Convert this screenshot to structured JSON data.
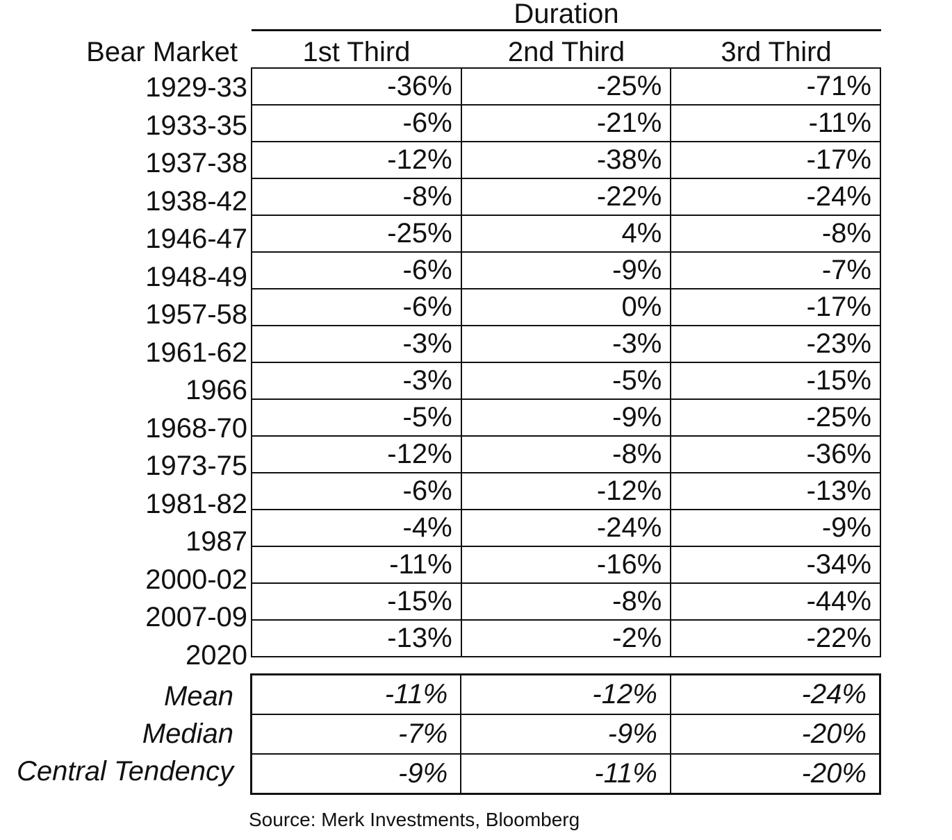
{
  "header": {
    "duration": "Duration",
    "bear_market": "Bear Market",
    "columns": [
      "1st Third",
      "2nd Third",
      "3rd Third"
    ]
  },
  "rows": [
    {
      "label": "1929-33",
      "values": [
        "-36%",
        "-25%",
        "-71%"
      ]
    },
    {
      "label": "1933-35",
      "values": [
        "-6%",
        "-21%",
        "-11%"
      ]
    },
    {
      "label": "1937-38",
      "values": [
        "-12%",
        "-38%",
        "-17%"
      ]
    },
    {
      "label": "1938-42",
      "values": [
        "-8%",
        "-22%",
        "-24%"
      ]
    },
    {
      "label": "1946-47",
      "values": [
        "-25%",
        "4%",
        "-8%"
      ]
    },
    {
      "label": "1948-49",
      "values": [
        "-6%",
        "-9%",
        "-7%"
      ]
    },
    {
      "label": "1957-58",
      "values": [
        "-6%",
        "0%",
        "-17%"
      ]
    },
    {
      "label": "1961-62",
      "values": [
        "-3%",
        "-3%",
        "-23%"
      ]
    },
    {
      "label": "1966",
      "values": [
        "-3%",
        "-5%",
        "-15%"
      ]
    },
    {
      "label": "1968-70",
      "values": [
        "-5%",
        "-9%",
        "-25%"
      ]
    },
    {
      "label": "1973-75",
      "values": [
        "-12%",
        "-8%",
        "-36%"
      ]
    },
    {
      "label": "1981-82",
      "values": [
        "-6%",
        "-12%",
        "-13%"
      ]
    },
    {
      "label": "1987",
      "values": [
        "-4%",
        "-24%",
        "-9%"
      ]
    },
    {
      "label": "2000-02",
      "values": [
        "-11%",
        "-16%",
        "-34%"
      ]
    },
    {
      "label": "2007-09",
      "values": [
        "-15%",
        "-8%",
        "-44%"
      ]
    },
    {
      "label": "2020",
      "values": [
        "-13%",
        "-2%",
        "-22%"
      ]
    }
  ],
  "summary": [
    {
      "label": "Mean",
      "values": [
        "-11%",
        "-12%",
        "-24%"
      ]
    },
    {
      "label": "Median",
      "values": [
        "-7%",
        "-9%",
        "-20%"
      ]
    },
    {
      "label": "Central Tendency",
      "values": [
        "-9%",
        "-11%",
        "-20%"
      ]
    }
  ],
  "source": "Source: Merk Investments, Bloomberg"
}
